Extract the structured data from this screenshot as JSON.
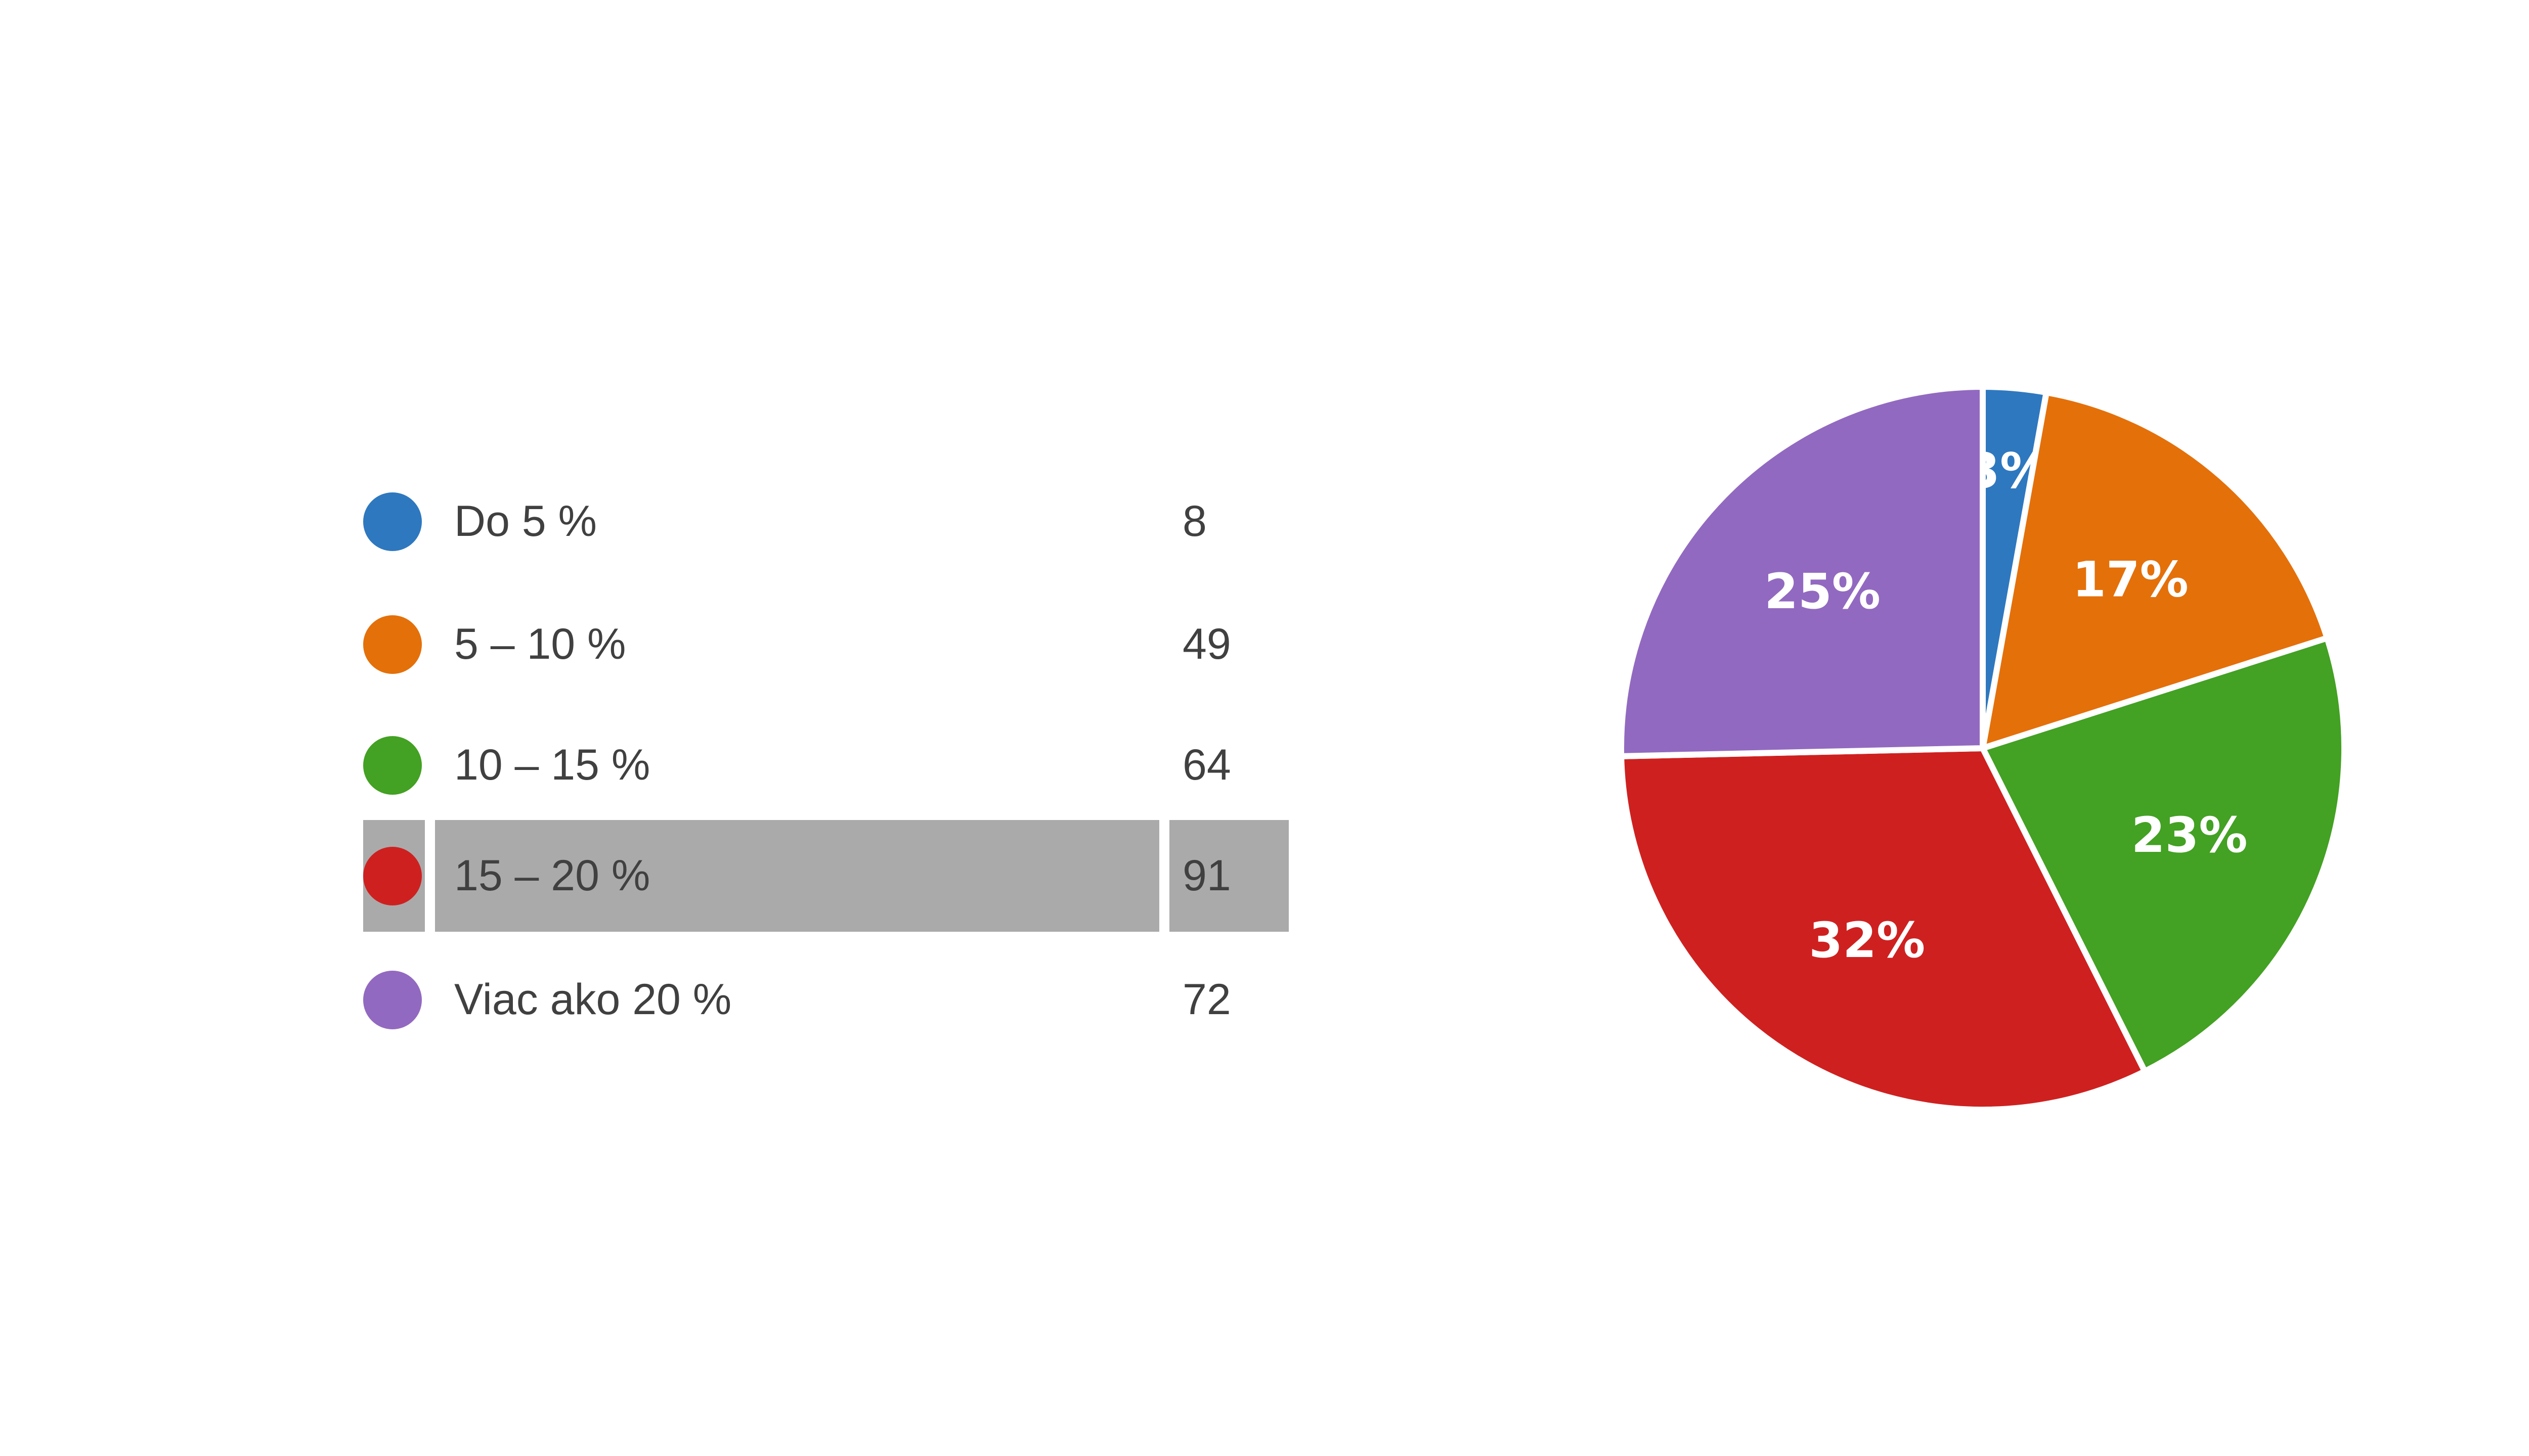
{
  "chart_data": {
    "type": "pie",
    "categories": [
      "Do 5 %",
      "5 – 10 %",
      "10 – 15 %",
      "15 – 20 %",
      "Viac ako 20 %"
    ],
    "values": [
      8,
      49,
      64,
      91,
      72
    ],
    "percent_labels": [
      "3%",
      "17%",
      "23%",
      "32%",
      "25%"
    ],
    "colors": [
      "#2e78bf",
      "#e4700a",
      "#43a123",
      "#cf2020",
      "#9269c0"
    ],
    "highlighted_category": "15 – 20 %",
    "legend_placement": "left",
    "start_angle_deg": 0,
    "direction": "clockwise"
  }
}
